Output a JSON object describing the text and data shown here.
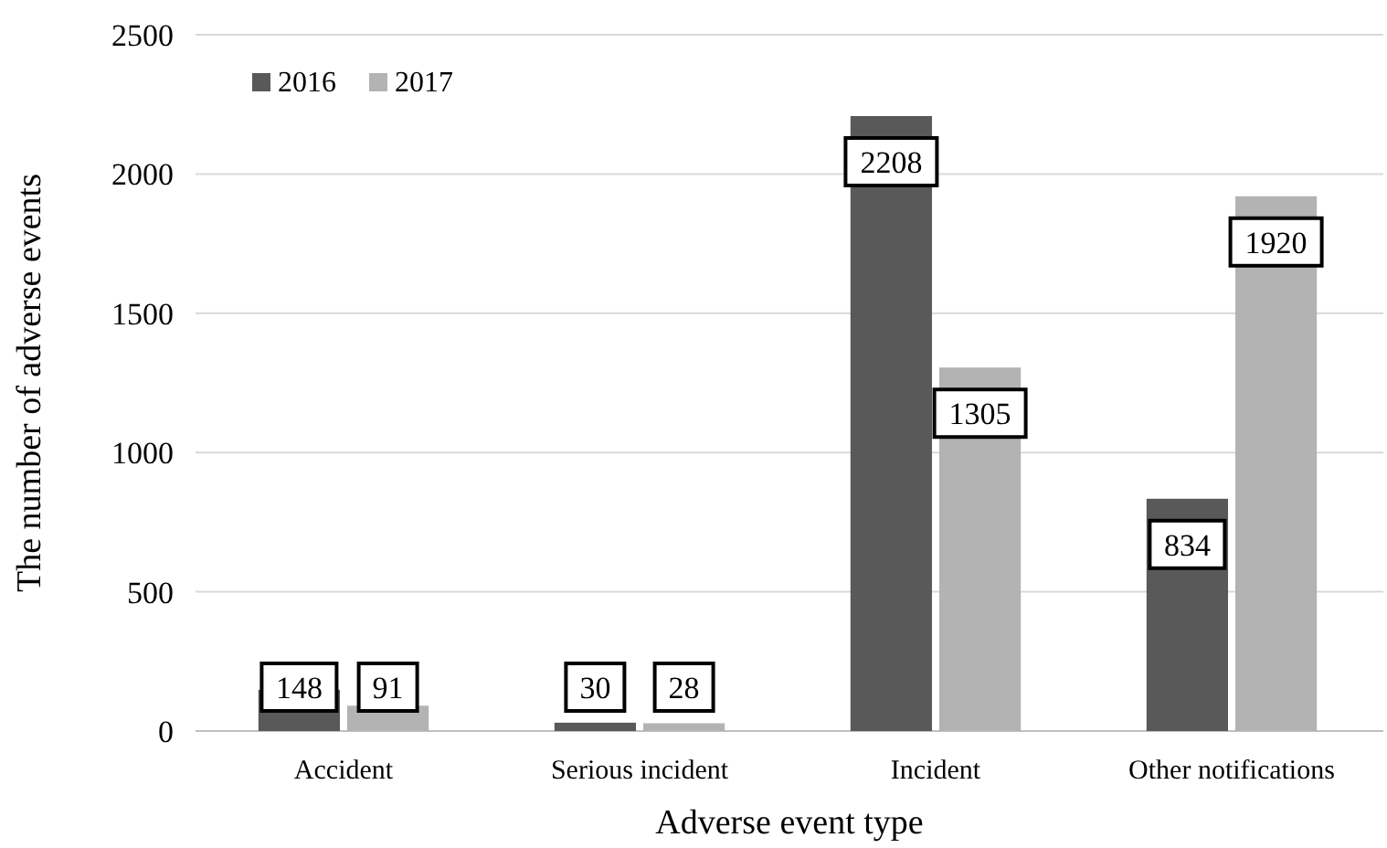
{
  "chart_data": {
    "type": "bar",
    "xlabel": "Adverse event type",
    "ylabel": "The number of adverse events",
    "categories": [
      "Accident",
      "Serious incident",
      "Incident",
      "Other notifications"
    ],
    "series": [
      {
        "name": "2016",
        "color": "#595959",
        "values": [
          148,
          30,
          2208,
          834
        ]
      },
      {
        "name": "2017",
        "color": "#b3b3b3",
        "values": [
          91,
          28,
          1305,
          1920
        ]
      }
    ],
    "ylim": [
      0,
      2500
    ],
    "yticks": [
      0,
      500,
      1000,
      1500,
      2000,
      2500
    ],
    "grid": "y",
    "legend": "top left",
    "data_labels": true
  }
}
